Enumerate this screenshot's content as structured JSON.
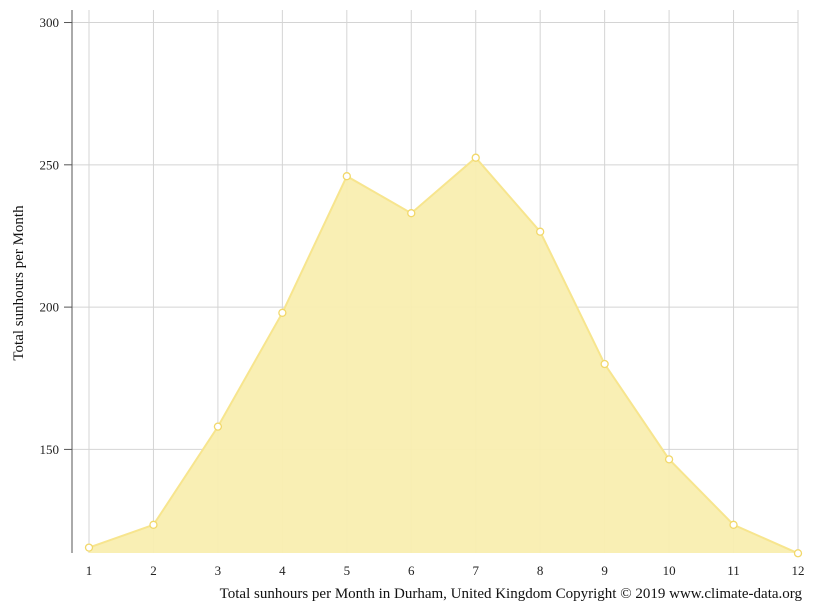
{
  "chart_data": {
    "type": "area",
    "title": "",
    "xlabel": "Total sunhours per Month in Durham, United Kingdom Copyright © 2019 www.climate-data.org",
    "ylabel": "Total sunhours per Month",
    "x": [
      1,
      2,
      3,
      4,
      5,
      6,
      7,
      8,
      9,
      10,
      11,
      12
    ],
    "x_tick_labels": [
      "1",
      "2",
      "3",
      "4",
      "5",
      "6",
      "7",
      "8",
      "9",
      "10",
      "11",
      "12"
    ],
    "y_ticks": [
      150,
      200,
      250,
      300
    ],
    "y_tick_labels": [
      "150",
      "200",
      "250",
      "300"
    ],
    "xlim": [
      1,
      12
    ],
    "ylim": [
      113.6,
      304.4
    ],
    "grid": true,
    "legend": "none",
    "series": [
      {
        "values": [
          115.5,
          123.5,
          158,
          198,
          246,
          233,
          252.5,
          226.5,
          180,
          146.5,
          123.5,
          113.5
        ],
        "line_color": "#f7e58e",
        "fill_color": "#f9eeb0",
        "marker_fill": "#ffffff",
        "marker_stroke": "#f2d86a"
      }
    ]
  }
}
